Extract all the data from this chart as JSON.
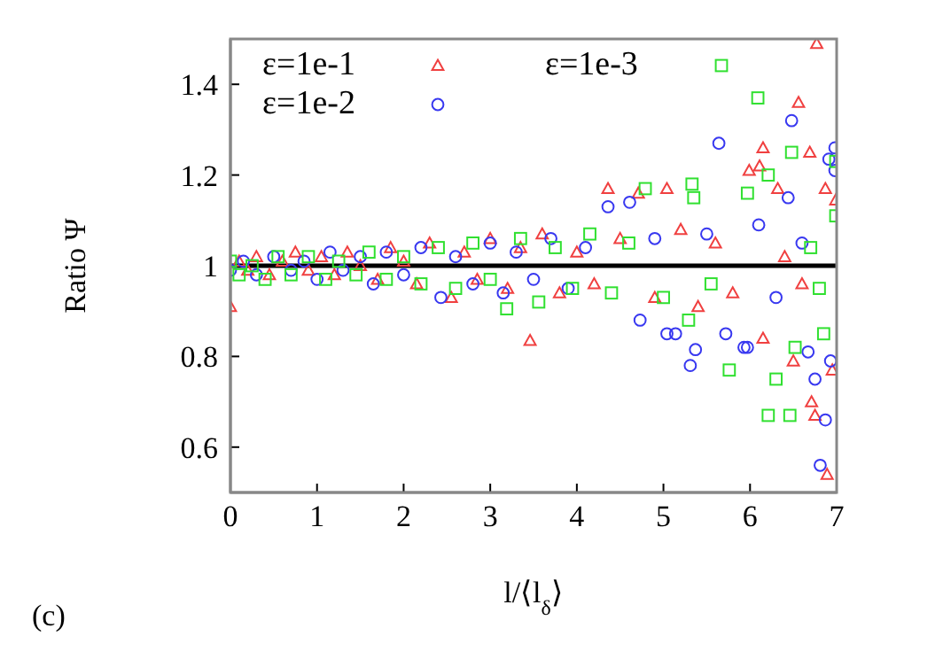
{
  "chart_data": {
    "type": "scatter",
    "xlabel": "l/⟨l$_{δ}$⟩",
    "ylabel": "Ratio Ψ",
    "annotations": [
      "(c)"
    ],
    "xlim": [
      0,
      7
    ],
    "xticks": [
      0,
      1,
      2,
      3,
      4,
      5,
      6,
      7
    ],
    "ylim": [
      0.5,
      1.5
    ],
    "yticks": [
      0.6,
      0.8,
      1,
      1.2,
      1.4
    ],
    "grid": false,
    "legend": "top",
    "ref_lines": [
      {
        "axis": "y",
        "value": 1,
        "color": "#000000"
      }
    ],
    "series": [
      {
        "name": "ε=1e-1",
        "color": "#f04040",
        "marker": "triangle",
        "x": [
          0,
          0.1,
          0.2,
          0.3,
          0.45,
          0.6,
          0.75,
          0.9,
          1.05,
          1.2,
          1.35,
          1.5,
          1.7,
          1.85,
          2.0,
          2.15,
          2.3,
          2.55,
          2.7,
          2.85,
          3.0,
          3.2,
          3.35,
          3.46,
          3.6,
          3.8,
          4.0,
          4.2,
          4.36,
          4.5,
          4.71,
          4.9,
          5.04,
          5.2,
          5.4,
          5.6,
          5.8,
          5.99,
          6.11,
          6.15,
          6.15,
          6.32,
          6.4,
          6.5,
          6.56,
          6.6,
          6.69,
          6.71,
          6.75,
          6.77,
          6.87,
          6.89,
          6.95,
          6.99
        ],
        "values": [
          0.91,
          1.01,
          0.99,
          1.02,
          0.98,
          1.01,
          1.03,
          0.99,
          1.02,
          0.98,
          1.03,
          1.0,
          0.97,
          1.04,
          1.01,
          0.96,
          1.05,
          0.93,
          1.03,
          0.97,
          1.06,
          0.95,
          1.04,
          0.835,
          1.07,
          0.94,
          1.03,
          0.96,
          1.17,
          1.06,
          1.16,
          0.93,
          1.17,
          1.08,
          0.91,
          1.05,
          0.94,
          1.21,
          1.22,
          1.26,
          0.84,
          1.17,
          1.02,
          0.79,
          1.36,
          0.96,
          1.25,
          0.7,
          0.67,
          1.49,
          1.17,
          0.54,
          0.77,
          1.145
        ]
      },
      {
        "name": "ε=1e-2",
        "color": "#3838f0",
        "marker": "circle",
        "x": [
          0,
          0.15,
          0.3,
          0.5,
          0.7,
          0.85,
          1.0,
          1.15,
          1.3,
          1.5,
          1.65,
          1.8,
          2.0,
          2.2,
          2.43,
          2.6,
          2.8,
          3.0,
          3.15,
          3.3,
          3.5,
          3.7,
          3.9,
          4.1,
          4.36,
          4.61,
          4.73,
          4.9,
          5.04,
          5.14,
          5.31,
          5.37,
          5.5,
          5.64,
          5.72,
          5.93,
          5.97,
          6.1,
          6.3,
          6.44,
          6.48,
          6.6,
          6.67,
          6.75,
          6.81,
          6.87,
          6.91,
          6.93,
          6.98,
          6.98
        ],
        "values": [
          0.99,
          1.01,
          0.98,
          1.02,
          0.99,
          1.01,
          0.97,
          1.03,
          0.99,
          1.02,
          0.96,
          1.03,
          0.98,
          1.04,
          0.93,
          1.02,
          0.96,
          1.05,
          0.94,
          1.03,
          0.97,
          1.06,
          0.95,
          1.04,
          1.13,
          1.14,
          0.88,
          1.06,
          0.85,
          0.85,
          0.78,
          0.815,
          1.07,
          1.27,
          0.85,
          0.82,
          0.82,
          1.09,
          0.93,
          1.15,
          1.32,
          1.05,
          0.81,
          0.75,
          0.56,
          0.66,
          1.235,
          0.79,
          1.26,
          1.21
        ]
      },
      {
        "name": "ε=1e-3",
        "color": "#30e030",
        "marker": "square",
        "x": [
          0,
          0.1,
          0.25,
          0.4,
          0.55,
          0.7,
          0.9,
          1.1,
          1.25,
          1.45,
          1.6,
          1.8,
          2.0,
          2.2,
          2.4,
          2.6,
          2.8,
          3.0,
          3.19,
          3.35,
          3.56,
          3.75,
          3.95,
          4.15,
          4.4,
          4.6,
          4.79,
          5.0,
          5.29,
          5.33,
          5.35,
          5.55,
          5.76,
          5.97,
          6.09,
          6.21,
          6.21,
          6.3,
          6.46,
          6.48,
          6.52,
          6.7,
          6.8,
          6.85,
          6.99,
          6.99
        ],
        "values": [
          1.01,
          0.98,
          1.0,
          0.97,
          1.02,
          0.98,
          1.02,
          0.97,
          1.01,
          0.98,
          1.03,
          0.97,
          1.02,
          0.96,
          1.04,
          0.95,
          1.05,
          0.97,
          0.905,
          1.06,
          0.92,
          1.04,
          0.95,
          1.07,
          0.94,
          1.05,
          1.17,
          0.93,
          0.88,
          1.18,
          1.15,
          0.96,
          0.77,
          1.16,
          1.37,
          1.2,
          0.67,
          0.75,
          0.67,
          1.25,
          0.82,
          1.04,
          0.95,
          0.85,
          1.23,
          1.11
        ]
      }
    ]
  }
}
